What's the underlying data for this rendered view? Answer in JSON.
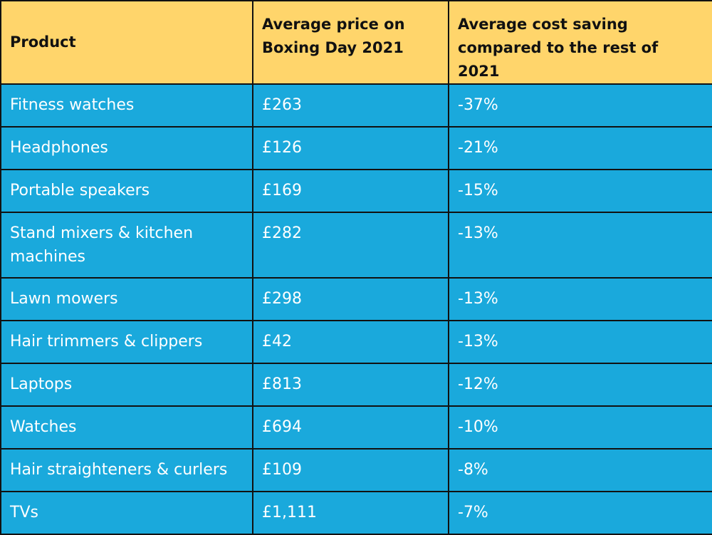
{
  "chart_data": {
    "type": "table",
    "columns": [
      "Product",
      "Average price on Boxing Day 2021",
      "Average cost saving compared to the rest of 2021"
    ],
    "rows": [
      {
        "product": "Fitness watches",
        "price": "£263",
        "saving": "-37%"
      },
      {
        "product": "Headphones",
        "price": "£126",
        "saving": "-21%"
      },
      {
        "product": "Portable speakers",
        "price": "£169",
        "saving": "-15%"
      },
      {
        "product": "Stand mixers & kitchen machines",
        "price": "£282",
        "saving": "-13%"
      },
      {
        "product": "Lawn mowers",
        "price": "£298",
        "saving": "-13%"
      },
      {
        "product": "Hair trimmers & clippers",
        "price": "£42",
        "saving": "-13%"
      },
      {
        "product": "Laptops",
        "price": "£813",
        "saving": "-12%"
      },
      {
        "product": "Watches",
        "price": "£694",
        "saving": "-10%"
      },
      {
        "product": "Hair straighteners & curlers",
        "price": "£109",
        "saving": "-8%"
      },
      {
        "product": "TVs",
        "price": "£1,111",
        "saving": "-7%"
      }
    ]
  },
  "colors": {
    "header_bg": "#ffd56b",
    "row_bg": "#1aa9dc",
    "border": "#111111",
    "row_text": "#ffffff"
  }
}
